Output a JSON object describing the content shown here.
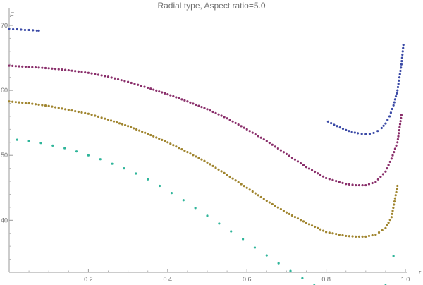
{
  "chart_data": {
    "type": "scatter",
    "title": "Radial type, Aspect ratio=5.0",
    "xlabel": "r",
    "ylabel": "F",
    "xlim": [
      0.0,
      1.0
    ],
    "ylim": [
      32.0,
      71.0
    ],
    "y_origin": 32.0,
    "x_ticks": [
      "0.2",
      "0.4",
      "0.6",
      "0.8",
      "1.0"
    ],
    "x_tick_values": [
      0.2,
      0.4,
      0.6,
      0.8,
      1.0
    ],
    "y_ticks": [
      "40",
      "50",
      "60",
      "70"
    ],
    "y_tick_values": [
      40,
      50,
      60,
      70
    ],
    "grid": false,
    "series": [
      {
        "color": "#3b4aa6",
        "segments": [
          {
            "x": [
              0.0,
              0.01,
              0.02,
              0.03,
              0.04,
              0.05,
              0.06,
              0.07,
              0.075
            ],
            "y": [
              69.5,
              69.4,
              69.4,
              69.35,
              69.3,
              69.3,
              69.25,
              69.2,
              69.2
            ]
          },
          {
            "x": [
              0.805,
              0.82,
              0.835,
              0.85,
              0.865,
              0.88,
              0.89,
              0.9,
              0.91,
              0.92,
              0.93,
              0.94,
              0.95,
              0.96,
              0.97,
              0.98,
              0.985,
              0.99,
              0.995
            ],
            "y": [
              55.2,
              54.7,
              54.3,
              53.9,
              53.6,
              53.4,
              53.3,
              53.25,
              53.3,
              53.45,
              53.75,
              54.2,
              54.9,
              56.0,
              57.7,
              60.0,
              62.0,
              64.0,
              67.0
            ]
          }
        ]
      },
      {
        "color": "#8a2f6b",
        "segments": [
          {
            "x": [
              0.0,
              0.05,
              0.1,
              0.15,
              0.2,
              0.25,
              0.3,
              0.35,
              0.4,
              0.45,
              0.5,
              0.55,
              0.6,
              0.65,
              0.7,
              0.75,
              0.8,
              0.85,
              0.875,
              0.9,
              0.925,
              0.95,
              0.965,
              0.98,
              0.99
            ],
            "y": [
              63.8,
              63.6,
              63.4,
              63.1,
              62.7,
              62.1,
              61.3,
              60.4,
              59.4,
              58.3,
              57.1,
              55.7,
              54.0,
              52.2,
              50.2,
              48.2,
              46.5,
              45.6,
              45.4,
              45.4,
              45.9,
              47.5,
              49.5,
              52.0,
              56.2
            ]
          }
        ]
      },
      {
        "color": "#a0852f",
        "segments": [
          {
            "x": [
              0.0,
              0.05,
              0.1,
              0.15,
              0.2,
              0.25,
              0.3,
              0.35,
              0.4,
              0.45,
              0.5,
              0.55,
              0.6,
              0.65,
              0.7,
              0.75,
              0.8,
              0.85,
              0.875,
              0.9,
              0.925,
              0.95,
              0.965,
              0.98
            ],
            "y": [
              58.3,
              58.0,
              57.6,
              57.0,
              56.4,
              55.5,
              54.5,
              53.3,
              52.0,
              50.5,
              48.9,
              47.0,
              45.0,
              43.0,
              41.2,
              39.6,
              38.2,
              37.6,
              37.5,
              37.5,
              37.8,
              38.8,
              40.5,
              45.3
            ]
          }
        ]
      },
      {
        "color": "#2fb59a",
        "segments": [
          {
            "x": [
              0.02,
              0.05,
              0.08,
              0.11,
              0.14,
              0.17,
              0.2,
              0.23,
              0.26,
              0.29,
              0.32,
              0.35,
              0.38,
              0.41,
              0.44,
              0.47,
              0.5,
              0.53,
              0.56,
              0.59,
              0.62,
              0.65,
              0.68,
              0.71,
              0.74,
              0.77,
              0.8,
              0.83,
              0.86,
              0.89,
              0.92,
              0.95,
              0.97
            ],
            "y": [
              52.4,
              52.2,
              51.9,
              51.5,
              51.1,
              50.6,
              50.0,
              49.4,
              48.7,
              48.0,
              47.2,
              46.3,
              45.3,
              44.2,
              43.1,
              41.9,
              40.7,
              39.5,
              38.3,
              37.1,
              35.8,
              34.6,
              33.4,
              32.2,
              31.1,
              30.0,
              29.1,
              28.5,
              28.1,
              28.0,
              28.4,
              30.0,
              34.5
            ]
          }
        ]
      }
    ]
  }
}
